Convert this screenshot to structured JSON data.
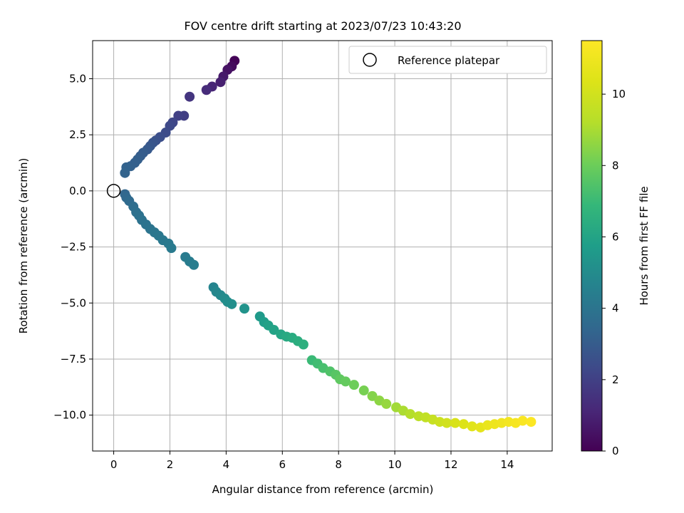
{
  "chart_data": {
    "type": "scatter",
    "title": "FOV centre drift starting at 2023/07/23 10:43:20",
    "xlabel": "Angular distance from reference (arcmin)",
    "ylabel": "Rotation from reference (arcmin)",
    "xlim": [
      -0.75,
      15.6
    ],
    "ylim": [
      -11.6,
      6.7
    ],
    "xticks": [
      0,
      2,
      4,
      6,
      8,
      10,
      12,
      14
    ],
    "xtick_labels": [
      "0",
      "2",
      "4",
      "6",
      "8",
      "10",
      "12",
      "14"
    ],
    "yticks": [
      5.0,
      2.5,
      0.0,
      -2.5,
      -5.0,
      -7.5,
      -10.0
    ],
    "ytick_labels": [
      "5.0",
      "2.5",
      "0.0",
      "−2.5",
      "−5.0",
      "−7.5",
      "−10.0"
    ],
    "grid": true,
    "legend": {
      "position": "top-right",
      "entries": [
        "Reference platepar"
      ]
    },
    "reference_point": {
      "x": 0.0,
      "y": 0.0,
      "label": "Reference platepar"
    },
    "colorbar": {
      "label": "Hours from first FF file",
      "colormap": "viridis",
      "range": [
        0,
        11.5
      ],
      "ticks": [
        0,
        2,
        4,
        6,
        8,
        10
      ],
      "tick_labels": [
        "0",
        "2",
        "4",
        "6",
        "8",
        "10"
      ]
    },
    "points": {
      "x": [
        4.3,
        4.2,
        4.05,
        3.9,
        3.8,
        3.5,
        3.3,
        2.7,
        2.5,
        2.3,
        2.1,
        2.0,
        1.85,
        1.65,
        1.5,
        1.4,
        1.3,
        1.2,
        1.05,
        0.95,
        0.85,
        0.75,
        0.6,
        0.45,
        0.4,
        0.4,
        0.45,
        0.55,
        0.7,
        0.8,
        0.9,
        1.0,
        1.15,
        1.3,
        1.45,
        1.6,
        1.75,
        1.95,
        2.05,
        2.55,
        2.7,
        2.85,
        3.55,
        3.65,
        3.8,
        3.95,
        4.05,
        4.2,
        4.65,
        5.2,
        5.35,
        5.5,
        5.7,
        5.95,
        6.15,
        6.35,
        6.55,
        6.75,
        7.05,
        7.25,
        7.45,
        7.7,
        7.9,
        8.05,
        8.25,
        8.55,
        8.9,
        9.2,
        9.45,
        9.7,
        10.05,
        10.3,
        10.55,
        10.85,
        11.1,
        11.35,
        11.6,
        11.85,
        12.15,
        12.45,
        12.75,
        13.05,
        13.3,
        13.55,
        13.8,
        14.05,
        14.3,
        14.55,
        14.85
      ],
      "y": [
        5.8,
        5.55,
        5.4,
        5.1,
        4.85,
        4.65,
        4.5,
        4.2,
        3.35,
        3.35,
        3.05,
        2.9,
        2.6,
        2.4,
        2.25,
        2.15,
        2.0,
        1.85,
        1.7,
        1.55,
        1.4,
        1.25,
        1.1,
        1.05,
        0.8,
        -0.15,
        -0.3,
        -0.45,
        -0.7,
        -0.95,
        -1.1,
        -1.3,
        -1.5,
        -1.7,
        -1.85,
        -2.0,
        -2.2,
        -2.35,
        -2.55,
        -2.95,
        -3.15,
        -3.3,
        -4.3,
        -4.5,
        -4.65,
        -4.8,
        -4.95,
        -5.05,
        -5.25,
        -5.6,
        -5.85,
        -6.0,
        -6.2,
        -6.4,
        -6.5,
        -6.55,
        -6.7,
        -6.85,
        -7.55,
        -7.7,
        -7.9,
        -8.05,
        -8.2,
        -8.4,
        -8.5,
        -8.65,
        -8.9,
        -9.15,
        -9.35,
        -9.5,
        -9.65,
        -9.8,
        -9.95,
        -10.05,
        -10.1,
        -10.2,
        -10.3,
        -10.35,
        -10.35,
        -10.4,
        -10.5,
        -10.55,
        -10.45,
        -10.4,
        -10.35,
        -10.3,
        -10.35,
        -10.25,
        -10.3
      ],
      "hours": [
        0.1,
        0.3,
        0.5,
        0.7,
        0.9,
        1.1,
        1.3,
        1.6,
        1.9,
        2.0,
        2.2,
        2.3,
        2.4,
        2.5,
        2.6,
        2.7,
        2.8,
        2.9,
        3.0,
        3.05,
        3.1,
        3.15,
        3.2,
        3.25,
        3.3,
        3.4,
        3.5,
        3.6,
        3.7,
        3.8,
        3.85,
        3.9,
        3.95,
        4.0,
        4.05,
        4.1,
        4.15,
        4.2,
        4.25,
        4.3,
        4.35,
        4.4,
        4.7,
        4.8,
        4.9,
        5.0,
        5.1,
        5.15,
        5.3,
        5.6,
        5.75,
        5.9,
        6.0,
        6.1,
        6.25,
        6.35,
        6.45,
        6.55,
        7.0,
        7.15,
        7.3,
        7.45,
        7.6,
        7.75,
        7.85,
        8.0,
        8.2,
        8.4,
        8.55,
        8.7,
        8.9,
        9.05,
        9.2,
        9.4,
        9.55,
        9.7,
        9.85,
        10.0,
        10.2,
        10.35,
        10.5,
        10.65,
        10.8,
        10.95,
        11.05,
        11.15,
        11.25,
        11.35,
        11.45
      ]
    }
  }
}
